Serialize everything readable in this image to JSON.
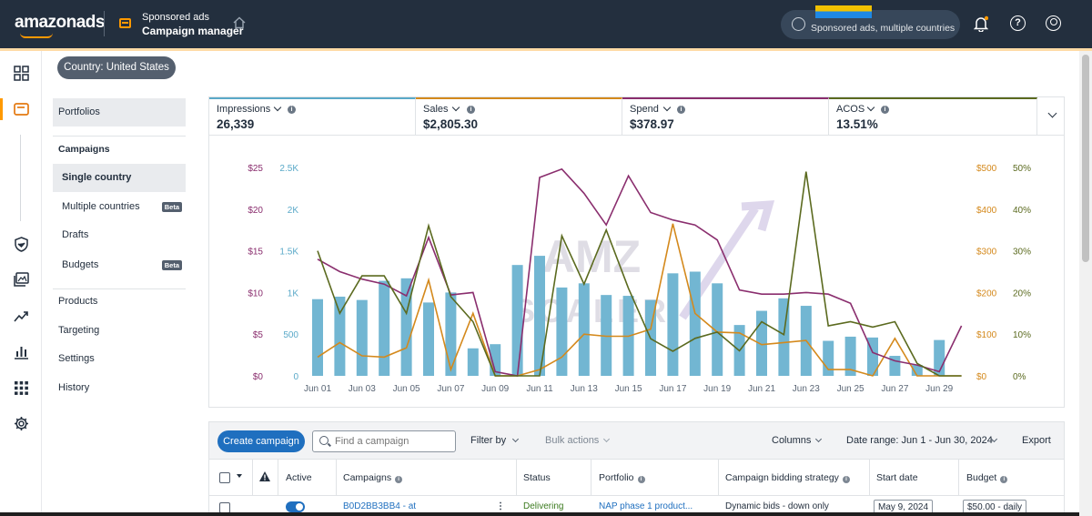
{
  "topbar": {
    "logo_text": "amazonads",
    "product_sub": "Sponsored ads",
    "product_title": "Campaign manager",
    "account_label": "Sponsored ads, multiple countries",
    "icons": [
      "home-icon",
      "globe-icon",
      "bell-icon",
      "help-icon",
      "user-icon"
    ]
  },
  "country_pill": "Country: United States",
  "subnav": {
    "portfolios": "Portfolios",
    "campaigns_header": "Campaigns",
    "single_country": "Single country",
    "multiple_countries": "Multiple countries",
    "drafts": "Drafts",
    "budgets": "Budgets",
    "beta": "Beta",
    "products": "Products",
    "targeting": "Targeting",
    "settings": "Settings",
    "history": "History"
  },
  "metrics": [
    {
      "label": "Impressions",
      "value": "26,339",
      "color": "#5aa9c8"
    },
    {
      "label": "Sales",
      "value": "$2,805.30",
      "color": "#d4891c"
    },
    {
      "label": "Spend",
      "value": "$378.97",
      "color": "#8a2e6e"
    },
    {
      "label": "ACOS",
      "value": "13.51%",
      "color": "#5b6a1f"
    }
  ],
  "chart_data": {
    "type": "bar",
    "categories": [
      "Jun 01",
      "Jun 02",
      "Jun 03",
      "Jun 04",
      "Jun 05",
      "Jun 06",
      "Jun 07",
      "Jun 08",
      "Jun 09",
      "Jun 10",
      "Jun 11",
      "Jun 12",
      "Jun 13",
      "Jun 14",
      "Jun 15",
      "Jun 16",
      "Jun 17",
      "Jun 18",
      "Jun 19",
      "Jun 20",
      "Jun 21",
      "Jun 22",
      "Jun 23",
      "Jun 24",
      "Jun 25",
      "Jun 26",
      "Jun 27",
      "Jun 28",
      "Jun 29",
      "Jun 30"
    ],
    "x_tick_labels": [
      "Jun 01",
      "Jun 03",
      "Jun 05",
      "Jun 07",
      "Jun 09",
      "Jun 11",
      "Jun 13",
      "Jun 15",
      "Jun 17",
      "Jun 19",
      "Jun 21",
      "Jun 23",
      "Jun 25",
      "Jun 27",
      "Jun 29"
    ],
    "series": [
      {
        "name": "Impressions",
        "type": "bar",
        "axis": "impressions",
        "color": "#72b6d2",
        "values": [
          920,
          950,
          910,
          1140,
          1170,
          880,
          1000,
          330,
          380,
          1330,
          1440,
          1060,
          1110,
          970,
          960,
          910,
          1230,
          1250,
          1110,
          610,
          780,
          930,
          840,
          420,
          470,
          460,
          240,
          130,
          430,
          0
        ]
      },
      {
        "name": "Sales",
        "type": "line",
        "axis": "sales",
        "color": "#d4891c",
        "values": [
          45,
          80,
          48,
          45,
          67,
          230,
          15,
          150,
          0,
          0,
          15,
          45,
          100,
          95,
          95,
          112,
          365,
          150,
          105,
          103,
          75,
          80,
          85,
          15,
          15,
          0,
          90,
          0,
          0,
          0
        ]
      },
      {
        "name": "Spend",
        "type": "line",
        "axis": "spend",
        "color": "#8a2e6e",
        "values": [
          14,
          12.5,
          11.6,
          11,
          9.6,
          16.6,
          9.7,
          10,
          0.5,
          0,
          23.8,
          24.8,
          21.9,
          18.1,
          24,
          19.6,
          18.7,
          18.1,
          16.3,
          10.3,
          9.8,
          9.8,
          10,
          9.8,
          8.7,
          2.8,
          1.8,
          1.3,
          0.5,
          6
        ]
      },
      {
        "name": "ACOS",
        "type": "line",
        "axis": "acos",
        "color": "#5b6a1f",
        "values": [
          30,
          15,
          24,
          24,
          15,
          36,
          19,
          13,
          0,
          0,
          0,
          33.6,
          22,
          35,
          21,
          8.9,
          5.9,
          9,
          10.5,
          6,
          13,
          9.9,
          49,
          12,
          13,
          11.7,
          13,
          3,
          0,
          0
        ]
      }
    ],
    "axes": {
      "spend": {
        "ticks": [
          "$0",
          "$5",
          "$10",
          "$15",
          "$20",
          "$25"
        ],
        "range": [
          0,
          25
        ],
        "position": "left-outer",
        "color": "#8a2e6e"
      },
      "impressions": {
        "ticks": [
          "0",
          "500",
          "1K",
          "1.5K",
          "2K",
          "2.5K"
        ],
        "range": [
          0,
          2500
        ],
        "position": "left-inner",
        "color": "#5aa9c8"
      },
      "sales": {
        "ticks": [
          "$0",
          "$100",
          "$200",
          "$300",
          "$400",
          "$500"
        ],
        "range": [
          0,
          500
        ],
        "position": "right-inner",
        "color": "#d4891c"
      },
      "acos": {
        "ticks": [
          "0%",
          "10%",
          "20%",
          "30%",
          "40%",
          "50%"
        ],
        "range": [
          0,
          50
        ],
        "position": "right-outer",
        "color": "#5b6a1f"
      }
    },
    "grid": false,
    "legend": "none",
    "watermark": "AMZ SCALER"
  },
  "toolbar": {
    "create_campaign": "Create campaign",
    "search_placeholder": "Find a campaign",
    "filter_by": "Filter by",
    "bulk_actions": "Bulk actions",
    "columns": "Columns",
    "date_range": "Date range: Jun 1 - Jun 30, 2024",
    "export": "Export"
  },
  "table": {
    "headers": {
      "active": "Active",
      "campaigns": "Campaigns",
      "status": "Status",
      "portfolio": "Portfolio",
      "bidding": "Campaign bidding strategy",
      "start_date": "Start date",
      "budget": "Budget"
    },
    "rows": [
      {
        "campaign": "B0D2BB3BB4 - at",
        "status": "Delivering",
        "portfolio": "NAP phase 1 product...",
        "bidding": "Dynamic bids - down only",
        "start_date": "May 9, 2024",
        "budget": "$50.00 - daily"
      }
    ]
  }
}
